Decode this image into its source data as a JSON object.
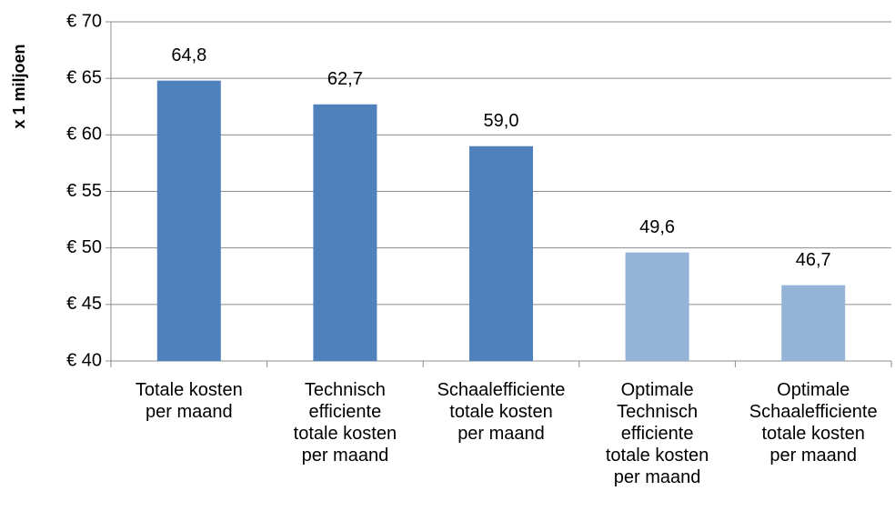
{
  "chart_data": {
    "type": "bar",
    "ylabel": "x 1 miljoen",
    "categories": [
      "Totale kosten\nper maand",
      "Technisch\nefficiente\ntotale kosten\nper maand",
      "Schaalefficiente\ntotale kosten\nper maand",
      "Optimale\nTechnisch\nefficiente\ntotale kosten\nper maand",
      "Optimale\nSchaalefficiente\ntotale kosten\nper maand"
    ],
    "values": [
      64.8,
      62.7,
      59.0,
      49.6,
      46.7
    ],
    "value_labels": [
      "64,8",
      "62,7",
      "59,0",
      "49,6",
      "46,7"
    ],
    "colors": [
      "#4f81bd",
      "#4f81bd",
      "#4f81bd",
      "#95b3d7",
      "#95b3d7"
    ],
    "ylim": [
      40,
      70
    ],
    "yticks": [
      {
        "value": 40,
        "label": "€ 40"
      },
      {
        "value": 45,
        "label": "€ 45"
      },
      {
        "value": 50,
        "label": "€ 50"
      },
      {
        "value": 55,
        "label": "€ 55"
      },
      {
        "value": 60,
        "label": "€ 60"
      },
      {
        "value": 65,
        "label": "€ 65"
      },
      {
        "value": 70,
        "label": "€ 70"
      }
    ],
    "grid": true
  }
}
